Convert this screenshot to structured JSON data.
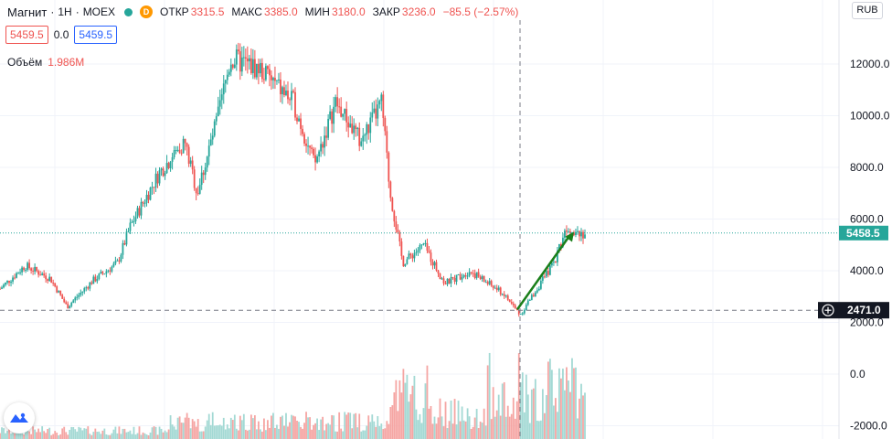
{
  "header": {
    "symbol": "Магнит",
    "interval": "1H",
    "exchange": "MOEX",
    "badge": "D",
    "open_label": "ОТКР",
    "open_value": "3315.5",
    "high_label": "МАКС",
    "high_value": "3385.0",
    "low_label": "МИН",
    "low_value": "3180.0",
    "close_label": "ЗАКР",
    "close_value": "3236.0",
    "change_value": "−85.5 (−2.57%)"
  },
  "price_boxes": {
    "sell": "5459.5",
    "spread": "0.0",
    "buy": "5459.5"
  },
  "volume": {
    "label": "Объём",
    "value": "1.986M"
  },
  "currency_button": "RUB",
  "price_axis": {
    "ticks": [
      "12000.0",
      "10000.0",
      "8000.0",
      "6000.0",
      "4000.0",
      "2000.0",
      "0.0",
      "-2000.0"
    ],
    "tick_values": [
      12000,
      10000,
      8000,
      6000,
      4000,
      2000,
      0,
      -2000
    ],
    "current_price_label": "5458.5",
    "current_price": 5458.5,
    "crosshair_label": "2471.0",
    "crosshair_price": 2471.0
  },
  "colors": {
    "up": "#26a69a",
    "down": "#ef5350",
    "up_volume": "#a3d9d4",
    "down_volume": "#f5a5a3",
    "arrow": "#1a7f1a",
    "crosshair": "#787b86",
    "label_bg": "#131722"
  },
  "chart_data": {
    "type": "candlestick",
    "description_points": [
      {
        "x": 0,
        "price": 3300
      },
      {
        "x": 0.03,
        "price": 4200
      },
      {
        "x": 0.06,
        "price": 3700
      },
      {
        "x": 0.08,
        "price": 2600
      },
      {
        "x": 0.11,
        "price": 3600
      },
      {
        "x": 0.14,
        "price": 4300
      },
      {
        "x": 0.155,
        "price": 5700
      },
      {
        "x": 0.19,
        "price": 7800
      },
      {
        "x": 0.22,
        "price": 9000
      },
      {
        "x": 0.235,
        "price": 7000
      },
      {
        "x": 0.26,
        "price": 10000
      },
      {
        "x": 0.275,
        "price": 12200
      },
      {
        "x": 0.31,
        "price": 11800
      },
      {
        "x": 0.35,
        "price": 10500
      },
      {
        "x": 0.375,
        "price": 8100
      },
      {
        "x": 0.4,
        "price": 10500
      },
      {
        "x": 0.43,
        "price": 9000
      },
      {
        "x": 0.455,
        "price": 10500
      },
      {
        "x": 0.465,
        "price": 7000
      },
      {
        "x": 0.48,
        "price": 4300
      },
      {
        "x": 0.505,
        "price": 5000
      },
      {
        "x": 0.53,
        "price": 3500
      },
      {
        "x": 0.56,
        "price": 4000
      },
      {
        "x": 0.6,
        "price": 3100
      },
      {
        "x": 0.62,
        "price": 2300
      },
      {
        "x": 0.66,
        "price": 4300
      },
      {
        "x": 0.675,
        "price": 5700
      },
      {
        "x": 0.7,
        "price": 5400
      }
    ],
    "current_price": 5458.5,
    "arrow": {
      "from_price": 2500,
      "to_price": 5500
    }
  }
}
